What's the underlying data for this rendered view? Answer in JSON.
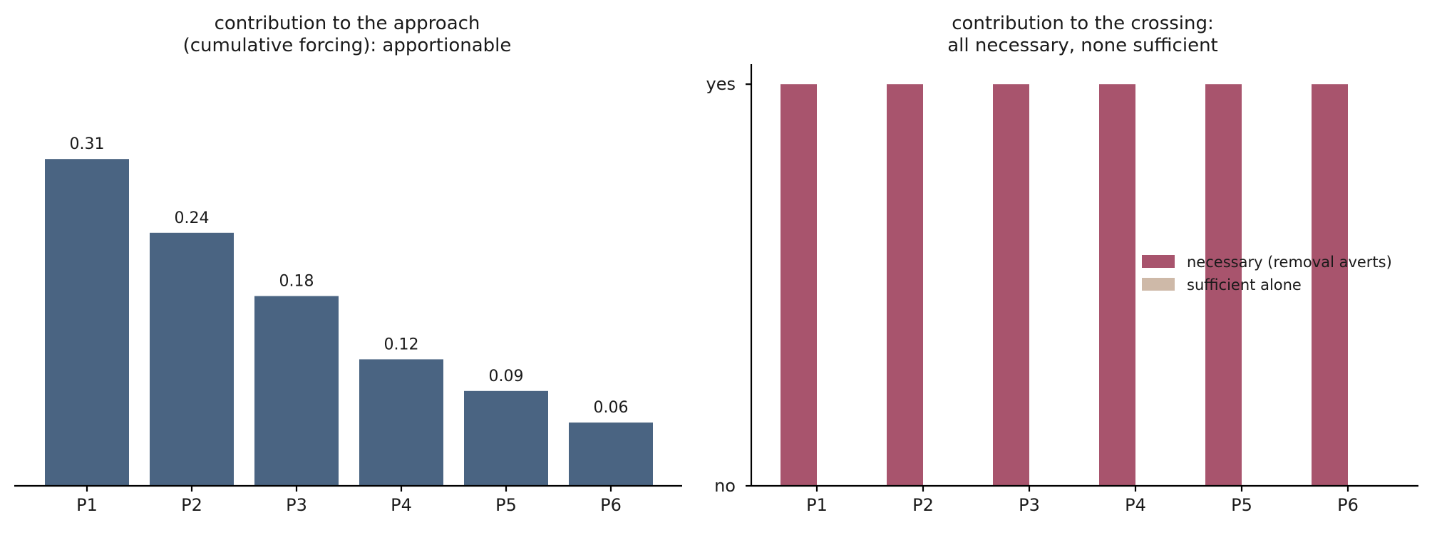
{
  "colors": {
    "bar": "#4a6482",
    "necessary": "#a8546d",
    "sufficient": "#ceb9a8"
  },
  "chart_data": [
    {
      "type": "bar",
      "title": [
        "contribution to the approach",
        "(cumulative forcing): apportionable"
      ],
      "categories": [
        "P1",
        "P2",
        "P3",
        "P4",
        "P5",
        "P6"
      ],
      "values": [
        0.31,
        0.24,
        0.18,
        0.12,
        0.09,
        0.06
      ],
      "data_labels": [
        "0.31",
        "0.24",
        "0.18",
        "0.12",
        "0.09",
        "0.06"
      ],
      "ylim": [
        0,
        0.4
      ],
      "y_axis_visible": false,
      "grid": false
    },
    {
      "type": "bar",
      "title": [
        "contribution to the crossing:",
        "all necessary, none sufficient"
      ],
      "categories": [
        "P1",
        "P2",
        "P3",
        "P4",
        "P5",
        "P6"
      ],
      "yticks": [
        "no",
        "yes"
      ],
      "ylim": [
        0,
        1.05
      ],
      "series": [
        {
          "name": "necessary (removal averts)",
          "values": [
            1,
            1,
            1,
            1,
            1,
            1
          ]
        },
        {
          "name": "sufficient alone",
          "values": [
            0,
            0,
            0,
            0,
            0,
            0
          ]
        }
      ],
      "legend": "center-right",
      "grid": false
    }
  ]
}
